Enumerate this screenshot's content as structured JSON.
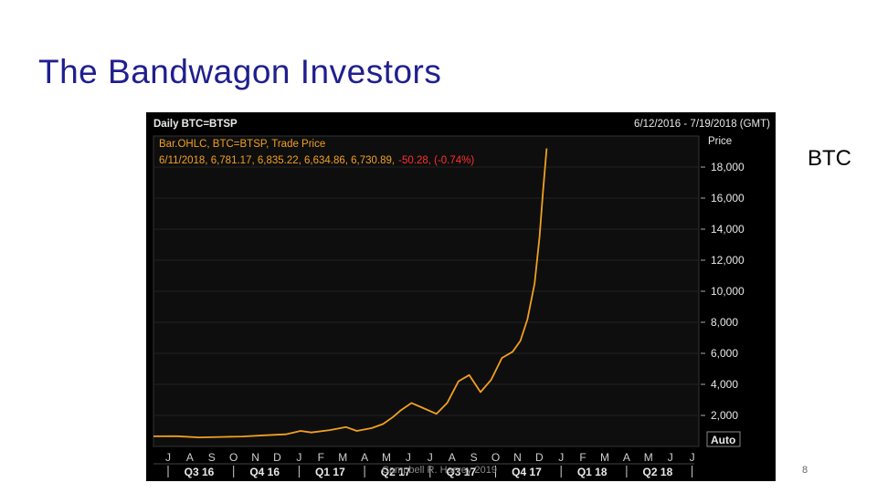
{
  "slide": {
    "title": "The Bandwagon Investors",
    "side_label": "BTC",
    "footer": "Campbell R. Harvey 2019",
    "page_number": "8"
  },
  "chart_data": {
    "type": "line",
    "title": "Daily BTC=BTSP",
    "date_range": "6/12/2016 - 7/19/2018 (GMT)",
    "legend_line1": "Bar.OHLC, BTC=BTSP, Trade Price",
    "legend_line2_main": "6/11/2018, 6,781.17, 6,835.22, 6,634.86, 6,730.89,",
    "legend_line2_change": "-50.28, (-0.74%)",
    "ylabel": "Price",
    "ylim": [
      0,
      20000
    ],
    "y_ticks": [
      {
        "value": 2000,
        "label": "2,000"
      },
      {
        "value": 4000,
        "label": "4,000"
      },
      {
        "value": 6000,
        "label": "6,000"
      },
      {
        "value": 8000,
        "label": "8,000"
      },
      {
        "value": 10000,
        "label": "10,000"
      },
      {
        "value": 12000,
        "label": "12,000"
      },
      {
        "value": 14000,
        "label": "14,000"
      },
      {
        "value": 16000,
        "label": "16,000"
      },
      {
        "value": 18000,
        "label": "18,000"
      }
    ],
    "auto_label": "Auto",
    "month_labels": [
      "J",
      "A",
      "S",
      "O",
      "N",
      "D",
      "J",
      "F",
      "M",
      "A",
      "M",
      "J",
      "J",
      "A",
      "S",
      "O",
      "N",
      "D",
      "J",
      "F",
      "M",
      "A",
      "M",
      "J",
      "J"
    ],
    "quarter_labels": [
      "Q3 16",
      "Q4 16",
      "Q1 17",
      "Q2 17",
      "Q3 17",
      "Q4 17",
      "Q1 18",
      "Q2 18"
    ],
    "series_color": "#f0a020",
    "series": [
      {
        "x": [
          "2016-06-12",
          "2016-07-15",
          "2016-08-15",
          "2016-09-15",
          "2016-10-15",
          "2016-11-15",
          "2016-12-15",
          "2017-01-05",
          "2017-01-20",
          "2017-02-15",
          "2017-03-10",
          "2017-03-25",
          "2017-04-15",
          "2017-05-01",
          "2017-05-15",
          "2017-05-25",
          "2017-06-10",
          "2017-06-25",
          "2017-07-15",
          "2017-07-30",
          "2017-08-15",
          "2017-08-30",
          "2017-09-15",
          "2017-09-30",
          "2017-10-15",
          "2017-10-30",
          "2017-11-10",
          "2017-11-20",
          "2017-11-30",
          "2017-12-07",
          "2017-12-12",
          "2017-12-17"
        ],
        "values": [
          650,
          660,
          580,
          610,
          640,
          720,
          780,
          1000,
          900,
          1050,
          1250,
          1000,
          1180,
          1450,
          1900,
          2300,
          2800,
          2500,
          2100,
          2800,
          4200,
          4600,
          3500,
          4300,
          5700,
          6100,
          6800,
          8200,
          10500,
          13500,
          16500,
          19200
        ]
      }
    ]
  }
}
